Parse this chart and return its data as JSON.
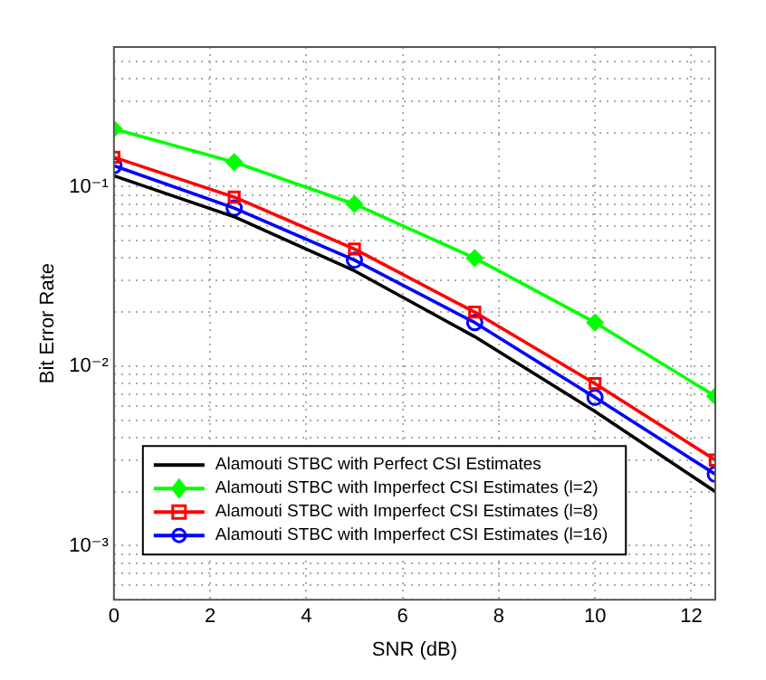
{
  "chart_data": {
    "type": "line",
    "xlabel": "SNR (dB)",
    "ylabel": "Bit Error Rate",
    "x": [
      0,
      2.5,
      5,
      7.5,
      10,
      12.5
    ],
    "series": [
      {
        "name": "Alamouti STBC with Perfect CSI Estimates",
        "color": "#000000",
        "marker": "none",
        "values": [
          0.115,
          0.068,
          0.034,
          0.0146,
          0.0056,
          0.002
        ]
      },
      {
        "name": "Alamouti STBC with Imperfect CSI Estimates (l=2)",
        "color": "#00ff00",
        "marker": "diamond",
        "values": [
          0.21,
          0.137,
          0.08,
          0.04,
          0.0175,
          0.0068
        ]
      },
      {
        "name": "Alamouti STBC with Imperfect CSI Estimates (l=8)",
        "color": "#ff0000",
        "marker": "square",
        "values": [
          0.146,
          0.0875,
          0.045,
          0.02,
          0.008,
          0.003
        ]
      },
      {
        "name": "Alamouti STBC with Imperfect CSI Estimates (l=16)",
        "color": "#0000ff",
        "marker": "circle",
        "values": [
          0.131,
          0.076,
          0.039,
          0.0175,
          0.0067,
          0.0025
        ]
      }
    ],
    "xlim": [
      0,
      12.5
    ],
    "xticks": [
      0,
      2,
      4,
      6,
      8,
      10,
      12
    ],
    "ylim": [
      0.0005,
      0.6
    ],
    "log": "y",
    "yticks": [
      {
        "value": 0.0005,
        "label": null
      },
      {
        "value": 0.0006,
        "label": null
      },
      {
        "value": 0.0007,
        "label": null
      },
      {
        "value": 0.0008,
        "label": null
      },
      {
        "value": 0.0009,
        "label": null
      },
      {
        "value": 0.001,
        "label": "10⁻³"
      },
      {
        "value": 0.002,
        "label": null
      },
      {
        "value": 0.003,
        "label": null
      },
      {
        "value": 0.004,
        "label": null
      },
      {
        "value": 0.005,
        "label": null
      },
      {
        "value": 0.006,
        "label": null
      },
      {
        "value": 0.007,
        "label": null
      },
      {
        "value": 0.008,
        "label": null
      },
      {
        "value": 0.009,
        "label": null
      },
      {
        "value": 0.01,
        "label": "10⁻²"
      },
      {
        "value": 0.02,
        "label": null
      },
      {
        "value": 0.03,
        "label": null
      },
      {
        "value": 0.04,
        "label": null
      },
      {
        "value": 0.05,
        "label": null
      },
      {
        "value": 0.06,
        "label": null
      },
      {
        "value": 0.07,
        "label": null
      },
      {
        "value": 0.08,
        "label": null
      },
      {
        "value": 0.09,
        "label": null
      },
      {
        "value": 0.1,
        "label": "10⁻¹"
      },
      {
        "value": 0.2,
        "label": null
      },
      {
        "value": 0.3,
        "label": null
      },
      {
        "value": 0.4,
        "label": null
      },
      {
        "value": 0.5,
        "label": null
      },
      {
        "value": 0.6,
        "label": null
      }
    ],
    "grid": true,
    "legend": "bottom left",
    "line_style": "solid"
  }
}
